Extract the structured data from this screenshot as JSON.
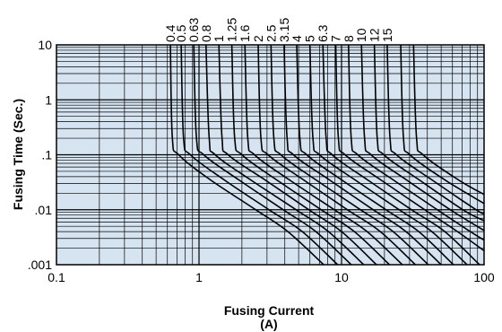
{
  "chart_data": {
    "type": "line",
    "title": "",
    "xlabel": "Fusing Current",
    "xlabel_unit": "(A)",
    "ylabel": "Fusing Time (Sec.)",
    "x_scale": "log",
    "y_scale": "log",
    "xlim": [
      0.1,
      100
    ],
    "ylim": [
      0.001,
      10
    ],
    "grid": true,
    "plot_background": "#d6e4f2",
    "curve_color": "#000000",
    "x_ticks": [
      {
        "value": 0.1,
        "label": "0.1"
      },
      {
        "value": 1,
        "label": "1"
      },
      {
        "value": 10,
        "label": "10"
      },
      {
        "value": 100,
        "label": "100"
      }
    ],
    "y_ticks": [
      {
        "value": 10,
        "label": "10"
      },
      {
        "value": 1,
        "label": "1"
      },
      {
        "value": 0.1,
        "label": ".1"
      },
      {
        "value": 0.01,
        "label": ".01"
      },
      {
        "value": 0.001,
        "label": ".001"
      }
    ],
    "series": [
      {
        "name": "0.4",
        "points": [
          [
            0.63,
            10
          ],
          [
            0.65,
            0.2
          ],
          [
            0.72,
            0.1
          ],
          [
            1.2,
            0.035
          ],
          [
            2.5,
            0.01
          ],
          [
            4.2,
            0.004
          ],
          [
            7.5,
            0.001
          ]
        ]
      },
      {
        "name": "0.5",
        "points": [
          [
            0.75,
            10
          ],
          [
            0.78,
            0.2
          ],
          [
            0.87,
            0.1
          ],
          [
            1.5,
            0.035
          ],
          [
            3.1,
            0.01
          ],
          [
            5.3,
            0.004
          ],
          [
            9.4,
            0.001
          ]
        ]
      },
      {
        "name": "0.63",
        "points": [
          [
            0.92,
            10
          ],
          [
            0.96,
            0.2
          ],
          [
            1.08,
            0.1
          ],
          [
            1.9,
            0.035
          ],
          [
            3.9,
            0.01
          ],
          [
            6.6,
            0.004
          ],
          [
            11.7,
            0.001
          ]
        ]
      },
      {
        "name": "0.8",
        "points": [
          [
            1.12,
            10
          ],
          [
            1.18,
            0.2
          ],
          [
            1.3,
            0.1
          ],
          [
            2.3,
            0.035
          ],
          [
            4.8,
            0.01
          ],
          [
            8.1,
            0.004
          ],
          [
            14.3,
            0.001
          ]
        ]
      },
      {
        "name": "1",
        "points": [
          [
            1.38,
            10
          ],
          [
            1.45,
            0.2
          ],
          [
            1.6,
            0.1
          ],
          [
            2.9,
            0.035
          ],
          [
            5.9,
            0.01
          ],
          [
            10,
            0.004
          ],
          [
            17.6,
            0.001
          ]
        ]
      },
      {
        "name": "1.25",
        "points": [
          [
            1.7,
            10
          ],
          [
            1.78,
            0.2
          ],
          [
            2,
            0.1
          ],
          [
            3.5,
            0.035
          ],
          [
            7.2,
            0.01
          ],
          [
            12.3,
            0.004
          ],
          [
            21.7,
            0.001
          ]
        ]
      },
      {
        "name": "1.6",
        "points": [
          [
            2.1,
            10
          ],
          [
            2.2,
            0.2
          ],
          [
            2.45,
            0.1
          ],
          [
            4.3,
            0.035
          ],
          [
            8.9,
            0.01
          ],
          [
            15.1,
            0.004
          ],
          [
            26.7,
            0.001
          ]
        ]
      },
      {
        "name": "2",
        "points": [
          [
            2.6,
            10
          ],
          [
            2.72,
            0.2
          ],
          [
            3.05,
            0.1
          ],
          [
            5.4,
            0.035
          ],
          [
            11,
            0.01
          ],
          [
            18.7,
            0.004
          ],
          [
            33,
            0.001
          ]
        ]
      },
      {
        "name": "2.5",
        "points": [
          [
            3.2,
            10
          ],
          [
            3.35,
            0.2
          ],
          [
            3.75,
            0.1
          ],
          [
            6.6,
            0.035
          ],
          [
            13.6,
            0.01
          ],
          [
            23,
            0.004
          ],
          [
            40.6,
            0.001
          ]
        ]
      },
      {
        "name": "3.15",
        "points": [
          [
            3.95,
            10
          ],
          [
            4.15,
            0.2
          ],
          [
            4.6,
            0.1
          ],
          [
            8.2,
            0.035
          ],
          [
            16.7,
            0.01
          ],
          [
            28.3,
            0.004
          ],
          [
            50,
            0.001
          ]
        ]
      },
      {
        "name": "4",
        "points": [
          [
            4.85,
            10
          ],
          [
            5.1,
            0.2
          ],
          [
            5.7,
            0.1
          ],
          [
            10,
            0.035
          ],
          [
            20.5,
            0.01
          ],
          [
            34.8,
            0.004
          ],
          [
            61,
            0.001
          ]
        ]
      },
      {
        "name": "5",
        "points": [
          [
            6,
            10
          ],
          [
            6.3,
            0.2
          ],
          [
            7,
            0.1
          ],
          [
            12.4,
            0.035
          ],
          [
            25.4,
            0.01
          ],
          [
            43,
            0.004
          ],
          [
            76,
            0.001
          ]
        ]
      },
      {
        "name": "6.3",
        "points": [
          [
            7.4,
            10
          ],
          [
            7.8,
            0.2
          ],
          [
            8.6,
            0.1
          ],
          [
            15.2,
            0.035
          ],
          [
            31,
            0.01
          ],
          [
            53,
            0.004
          ],
          [
            93,
            0.001
          ]
        ]
      },
      {
        "name": "7",
        "points": [
          [
            9.1,
            10
          ],
          [
            9.5,
            0.2
          ],
          [
            10.6,
            0.1
          ],
          [
            18.8,
            0.035
          ],
          [
            38.4,
            0.01
          ],
          [
            65,
            0.004
          ],
          [
            100,
            0.0018
          ]
        ]
      },
      {
        "name": "8",
        "points": [
          [
            11.2,
            10
          ],
          [
            11.7,
            0.2
          ],
          [
            13,
            0.1
          ],
          [
            23,
            0.035
          ],
          [
            47,
            0.01
          ],
          [
            80,
            0.004
          ],
          [
            100,
            0.0028
          ]
        ]
      },
      {
        "name": "10",
        "points": [
          [
            13.8,
            10
          ],
          [
            14.5,
            0.2
          ],
          [
            16.1,
            0.1
          ],
          [
            28.5,
            0.035
          ],
          [
            58,
            0.01
          ],
          [
            100,
            0.0042
          ]
        ]
      },
      {
        "name": "12",
        "points": [
          [
            17,
            10
          ],
          [
            17.8,
            0.2
          ],
          [
            19.8,
            0.1
          ],
          [
            35,
            0.035
          ],
          [
            71,
            0.01
          ],
          [
            100,
            0.0063
          ]
        ]
      },
      {
        "name": "15",
        "points": [
          [
            20.9,
            10
          ],
          [
            21.9,
            0.2
          ],
          [
            24.3,
            0.1
          ],
          [
            43,
            0.035
          ],
          [
            88,
            0.01
          ],
          [
            100,
            0.0085
          ]
        ]
      },
      {
        "name": "",
        "points": [
          [
            26,
            10
          ],
          [
            27.2,
            0.2
          ],
          [
            30.2,
            0.1
          ],
          [
            53,
            0.035
          ],
          [
            100,
            0.013
          ]
        ]
      },
      {
        "name": "",
        "points": [
          [
            32,
            10
          ],
          [
            33.6,
            0.2
          ],
          [
            37.3,
            0.1
          ],
          [
            66,
            0.035
          ],
          [
            100,
            0.019
          ]
        ]
      }
    ]
  }
}
